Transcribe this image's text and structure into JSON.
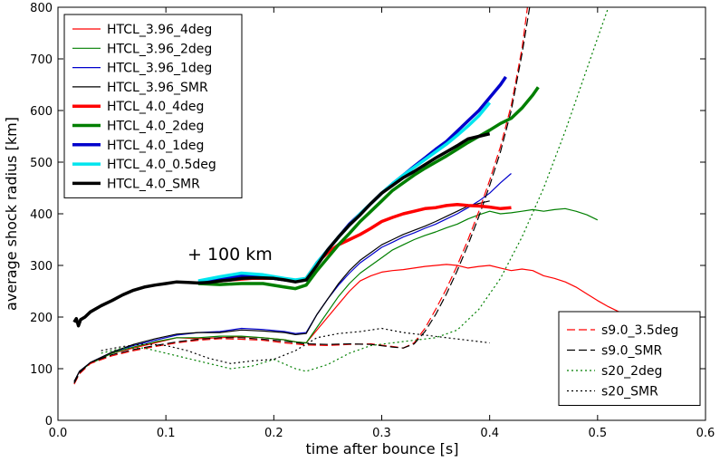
{
  "chart_data": {
    "type": "line",
    "xlabel": "time after bounce [s]",
    "ylabel": "average shock radius [km]",
    "xlim": [
      0.0,
      0.6
    ],
    "ylim": [
      0,
      800
    ],
    "xticks": [
      0.0,
      0.1,
      0.2,
      0.3,
      0.4,
      0.5,
      0.6
    ],
    "yticks": [
      0,
      100,
      200,
      300,
      400,
      500,
      600,
      700,
      800
    ],
    "grid": false,
    "annotation": "+ 100 km",
    "legend_placement": [
      "top-left",
      "bottom-right"
    ],
    "series": [
      {
        "name": "HTCL_3.96_4deg",
        "color": "#ff0000",
        "style": "solid",
        "width": "thin",
        "legend": 0,
        "x": [
          0.015,
          0.02,
          0.03,
          0.05,
          0.07,
          0.09,
          0.11,
          0.13,
          0.15,
          0.17,
          0.19,
          0.21,
          0.22,
          0.23,
          0.24,
          0.25,
          0.26,
          0.27,
          0.28,
          0.29,
          0.3,
          0.31,
          0.32,
          0.33,
          0.34,
          0.35,
          0.36,
          0.37,
          0.38,
          0.39,
          0.4,
          0.41,
          0.42,
          0.43,
          0.44,
          0.45,
          0.46,
          0.47,
          0.48,
          0.49,
          0.5,
          0.51,
          0.52,
          0.53
        ],
        "y": [
          75,
          95,
          110,
          130,
          140,
          150,
          160,
          158,
          160,
          162,
          160,
          156,
          152,
          150,
          175,
          200,
          225,
          250,
          270,
          280,
          287,
          290,
          292,
          295,
          298,
          300,
          302,
          300,
          295,
          298,
          300,
          295,
          290,
          293,
          290,
          280,
          275,
          268,
          258,
          245,
          232,
          220,
          210,
          200
        ]
      },
      {
        "name": "HTCL_3.96_2deg",
        "color": "#007f00",
        "style": "solid",
        "width": "thin",
        "legend": 0,
        "x": [
          0.015,
          0.02,
          0.03,
          0.05,
          0.07,
          0.09,
          0.11,
          0.13,
          0.15,
          0.17,
          0.19,
          0.21,
          0.22,
          0.23,
          0.24,
          0.25,
          0.26,
          0.27,
          0.28,
          0.29,
          0.3,
          0.31,
          0.32,
          0.33,
          0.34,
          0.35,
          0.36,
          0.37,
          0.38,
          0.39,
          0.4,
          0.41,
          0.42,
          0.43,
          0.44,
          0.45,
          0.46,
          0.47,
          0.48,
          0.49,
          0.5
        ],
        "y": [
          75,
          95,
          110,
          130,
          142,
          152,
          160,
          160,
          163,
          163,
          160,
          156,
          152,
          150,
          180,
          210,
          240,
          265,
          285,
          300,
          315,
          330,
          340,
          350,
          358,
          365,
          373,
          380,
          390,
          398,
          405,
          400,
          402,
          405,
          408,
          405,
          408,
          410,
          405,
          398,
          388
        ]
      },
      {
        "name": "HTCL_3.96_1deg",
        "color": "#0000cc",
        "style": "solid",
        "width": "thin",
        "legend": 0,
        "x": [
          0.015,
          0.02,
          0.03,
          0.05,
          0.07,
          0.09,
          0.11,
          0.13,
          0.15,
          0.17,
          0.19,
          0.21,
          0.22,
          0.23,
          0.24,
          0.25,
          0.26,
          0.27,
          0.28,
          0.29,
          0.3,
          0.31,
          0.32,
          0.33,
          0.34,
          0.35,
          0.36,
          0.37,
          0.38,
          0.39,
          0.4,
          0.41,
          0.42
        ],
        "y": [
          75,
          95,
          112,
          132,
          145,
          155,
          165,
          170,
          172,
          178,
          176,
          172,
          168,
          170,
          205,
          235,
          262,
          285,
          305,
          320,
          335,
          345,
          355,
          363,
          372,
          380,
          390,
          400,
          412,
          425,
          440,
          460,
          478
        ]
      },
      {
        "name": "HTCL_3.96_SMR",
        "color": "#000000",
        "style": "solid",
        "width": "thin",
        "legend": 0,
        "x": [
          0.015,
          0.02,
          0.03,
          0.05,
          0.07,
          0.09,
          0.11,
          0.13,
          0.15,
          0.17,
          0.19,
          0.21,
          0.22,
          0.23,
          0.24,
          0.25,
          0.26,
          0.27,
          0.28,
          0.29,
          0.3,
          0.31,
          0.32,
          0.33,
          0.34,
          0.35,
          0.36,
          0.37,
          0.38,
          0.39,
          0.4
        ],
        "y": [
          75,
          95,
          112,
          132,
          147,
          158,
          167,
          170,
          170,
          175,
          173,
          170,
          166,
          168,
          205,
          235,
          265,
          290,
          310,
          325,
          340,
          350,
          360,
          368,
          376,
          385,
          395,
          405,
          415,
          420,
          425
        ]
      },
      {
        "name": "HTCL_4.0_4deg",
        "color": "#ff0000",
        "style": "solid",
        "width": "thick",
        "legend": 0,
        "x": [
          0.14,
          0.16,
          0.18,
          0.2,
          0.22,
          0.23,
          0.24,
          0.25,
          0.26,
          0.27,
          0.28,
          0.29,
          0.3,
          0.31,
          0.32,
          0.33,
          0.34,
          0.35,
          0.36,
          0.37,
          0.38,
          0.39,
          0.4,
          0.41,
          0.42
        ],
        "y": [
          268,
          272,
          275,
          275,
          270,
          275,
          305,
          325,
          340,
          350,
          360,
          372,
          385,
          393,
          400,
          405,
          410,
          412,
          416,
          418,
          416,
          415,
          413,
          410,
          412
        ]
      },
      {
        "name": "HTCL_4.0_2deg",
        "color": "#007f00",
        "style": "solid",
        "width": "thick",
        "legend": 0,
        "x": [
          0.13,
          0.15,
          0.17,
          0.19,
          0.21,
          0.22,
          0.23,
          0.24,
          0.25,
          0.26,
          0.27,
          0.28,
          0.29,
          0.3,
          0.31,
          0.32,
          0.33,
          0.34,
          0.35,
          0.36,
          0.37,
          0.38,
          0.39,
          0.4,
          0.41,
          0.42,
          0.43,
          0.44,
          0.445
        ],
        "y": [
          265,
          263,
          265,
          265,
          258,
          255,
          262,
          290,
          315,
          340,
          362,
          385,
          405,
          425,
          445,
          460,
          475,
          488,
          500,
          512,
          525,
          538,
          550,
          562,
          575,
          585,
          605,
          630,
          645
        ]
      },
      {
        "name": "HTCL_4.0_1deg",
        "color": "#0000cc",
        "style": "solid",
        "width": "thick",
        "legend": 0,
        "x": [
          0.13,
          0.15,
          0.17,
          0.19,
          0.21,
          0.22,
          0.23,
          0.24,
          0.25,
          0.26,
          0.27,
          0.28,
          0.29,
          0.3,
          0.31,
          0.32,
          0.33,
          0.34,
          0.35,
          0.36,
          0.37,
          0.38,
          0.39,
          0.4,
          0.41,
          0.415
        ],
        "y": [
          267,
          273,
          280,
          278,
          272,
          270,
          272,
          305,
          330,
          355,
          380,
          400,
          420,
          440,
          458,
          475,
          492,
          508,
          525,
          540,
          560,
          580,
          600,
          625,
          650,
          665
        ]
      },
      {
        "name": "HTCL_4.0_0.5deg",
        "color": "#00e5ee",
        "style": "solid",
        "width": "thick",
        "legend": 0,
        "x": [
          0.13,
          0.15,
          0.17,
          0.19,
          0.21,
          0.22,
          0.23,
          0.24,
          0.25,
          0.26,
          0.27,
          0.28,
          0.29,
          0.3,
          0.31,
          0.32,
          0.33,
          0.34,
          0.35,
          0.36,
          0.37,
          0.38,
          0.39,
          0.4
        ],
        "y": [
          270,
          278,
          285,
          282,
          275,
          272,
          275,
          305,
          330,
          355,
          378,
          400,
          420,
          440,
          458,
          475,
          490,
          505,
          520,
          535,
          552,
          570,
          590,
          615
        ]
      },
      {
        "name": "HTCL_4.0_SMR",
        "color": "#000000",
        "style": "solid",
        "width": "thick",
        "legend": 0,
        "x": [
          0.015,
          0.017,
          0.019,
          0.021,
          0.025,
          0.03,
          0.04,
          0.05,
          0.06,
          0.07,
          0.08,
          0.09,
          0.1,
          0.11,
          0.12,
          0.13,
          0.14,
          0.15,
          0.16,
          0.17,
          0.18,
          0.19,
          0.2,
          0.21,
          0.22,
          0.23,
          0.24,
          0.25,
          0.26,
          0.27,
          0.28,
          0.29,
          0.3,
          0.31,
          0.32,
          0.33,
          0.34,
          0.35,
          0.36,
          0.37,
          0.38,
          0.39,
          0.4
        ],
        "y": [
          190,
          197,
          183,
          195,
          200,
          210,
          222,
          232,
          243,
          252,
          258,
          262,
          265,
          268,
          267,
          266,
          267,
          270,
          272,
          275,
          276,
          276,
          275,
          272,
          268,
          272,
          300,
          330,
          355,
          378,
          398,
          420,
          440,
          455,
          470,
          482,
          495,
          508,
          520,
          532,
          545,
          550,
          555
        ]
      },
      {
        "name": "s9.0_3.5deg",
        "color": "#ff0000",
        "style": "dashed",
        "width": "thin",
        "legend": 1,
        "x": [
          0.015,
          0.02,
          0.03,
          0.05,
          0.07,
          0.09,
          0.11,
          0.13,
          0.15,
          0.17,
          0.19,
          0.21,
          0.23,
          0.25,
          0.27,
          0.29,
          0.31,
          0.32,
          0.33,
          0.34,
          0.35,
          0.36,
          0.37,
          0.38,
          0.39,
          0.4,
          0.41,
          0.42,
          0.43,
          0.435
        ],
        "y": [
          70,
          90,
          110,
          125,
          135,
          143,
          150,
          155,
          158,
          157,
          155,
          150,
          146,
          145,
          147,
          148,
          143,
          140,
          150,
          178,
          215,
          255,
          300,
          350,
          405,
          465,
          530,
          610,
          720,
          800
        ]
      },
      {
        "name": "s9.0_SMR",
        "color": "#000000",
        "style": "dashed",
        "width": "thin",
        "legend": 1,
        "x": [
          0.015,
          0.02,
          0.03,
          0.05,
          0.07,
          0.09,
          0.11,
          0.13,
          0.15,
          0.17,
          0.19,
          0.21,
          0.23,
          0.25,
          0.27,
          0.29,
          0.31,
          0.32,
          0.33,
          0.34,
          0.35,
          0.36,
          0.37,
          0.38,
          0.39,
          0.4,
          0.41,
          0.42,
          0.43,
          0.437
        ],
        "y": [
          72,
          92,
          112,
          127,
          137,
          145,
          152,
          157,
          160,
          160,
          157,
          153,
          148,
          147,
          148,
          147,
          142,
          140,
          148,
          172,
          205,
          245,
          290,
          340,
          395,
          455,
          520,
          600,
          710,
          800
        ]
      },
      {
        "name": "s20_2deg",
        "color": "#007f00",
        "style": "dotted",
        "width": "thin",
        "legend": 1,
        "x": [
          0.04,
          0.06,
          0.08,
          0.1,
          0.12,
          0.14,
          0.16,
          0.18,
          0.2,
          0.22,
          0.23,
          0.25,
          0.27,
          0.29,
          0.31,
          0.33,
          0.35,
          0.37,
          0.39,
          0.41,
          0.43,
          0.45,
          0.47,
          0.49,
          0.5,
          0.51
        ],
        "y": [
          130,
          140,
          140,
          130,
          120,
          110,
          100,
          105,
          118,
          100,
          95,
          108,
          130,
          145,
          150,
          155,
          160,
          175,
          215,
          275,
          355,
          450,
          560,
          680,
          740,
          800
        ]
      },
      {
        "name": "s20_SMR",
        "color": "#000000",
        "style": "dotted",
        "width": "thin",
        "legend": 1,
        "x": [
          0.04,
          0.06,
          0.08,
          0.1,
          0.12,
          0.14,
          0.16,
          0.18,
          0.2,
          0.22,
          0.24,
          0.26,
          0.28,
          0.3,
          0.32,
          0.34,
          0.36,
          0.38,
          0.4
        ],
        "y": [
          135,
          143,
          148,
          145,
          135,
          120,
          110,
          115,
          118,
          135,
          160,
          168,
          172,
          178,
          170,
          165,
          160,
          155,
          150
        ]
      }
    ]
  }
}
